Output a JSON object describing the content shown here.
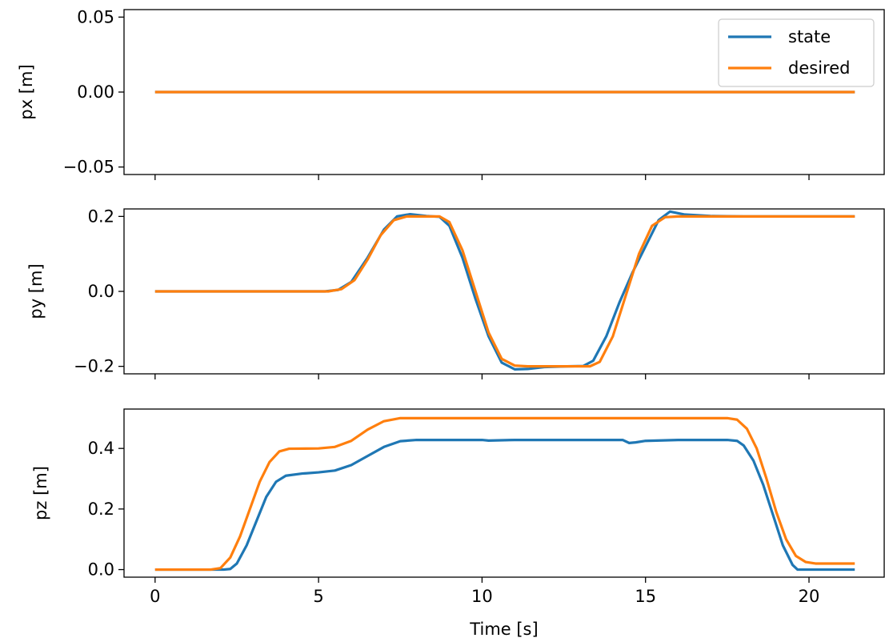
{
  "colors": {
    "state": "#1f77b4",
    "desired": "#ff7f0e"
  },
  "chart_data": [
    {
      "type": "line",
      "ylabel": "px [m]",
      "xlabel": "",
      "xlim": [
        -0.95,
        22.3
      ],
      "ylim": [
        -0.055,
        0.055
      ],
      "xticks": [
        0,
        5,
        10,
        15,
        20
      ],
      "xtick_labels_shown": false,
      "yticks": [
        -0.05,
        0.0,
        0.05
      ],
      "ytick_labels": [
        "−0.05",
        "0.00",
        "0.05"
      ],
      "grid": false,
      "legend": "top-right",
      "series": [
        {
          "name": "state",
          "color": "#1f77b4",
          "points": [
            [
              0,
              0
            ],
            [
              21.4,
              0
            ]
          ]
        },
        {
          "name": "desired",
          "color": "#ff7f0e",
          "points": [
            [
              0,
              0
            ],
            [
              21.4,
              0
            ]
          ]
        }
      ]
    },
    {
      "type": "line",
      "ylabel": "py [m]",
      "xlabel": "",
      "xlim": [
        -0.95,
        22.3
      ],
      "ylim": [
        -0.22,
        0.22
      ],
      "xticks": [
        0,
        5,
        10,
        15,
        20
      ],
      "xtick_labels_shown": false,
      "yticks": [
        -0.2,
        0.0,
        0.2
      ],
      "ytick_labels": [
        "−0.2",
        "0.0",
        "0.2"
      ],
      "grid": false,
      "series": [
        {
          "name": "state",
          "color": "#1f77b4",
          "points": [
            [
              0,
              0
            ],
            [
              5.2,
              0
            ],
            [
              5.6,
              0.004
            ],
            [
              6.0,
              0.025
            ],
            [
              6.5,
              0.09
            ],
            [
              7.0,
              0.165
            ],
            [
              7.4,
              0.2
            ],
            [
              7.8,
              0.206
            ],
            [
              8.3,
              0.201
            ],
            [
              8.7,
              0.199
            ],
            [
              9.0,
              0.175
            ],
            [
              9.4,
              0.09
            ],
            [
              9.8,
              -0.02
            ],
            [
              10.2,
              -0.12
            ],
            [
              10.6,
              -0.19
            ],
            [
              11.0,
              -0.208
            ],
            [
              11.4,
              -0.207
            ],
            [
              11.9,
              -0.202
            ],
            [
              12.6,
              -0.2
            ],
            [
              13.1,
              -0.199
            ],
            [
              13.4,
              -0.185
            ],
            [
              13.8,
              -0.12
            ],
            [
              14.2,
              -0.03
            ],
            [
              14.6,
              0.05
            ],
            [
              15.0,
              0.12
            ],
            [
              15.4,
              0.19
            ],
            [
              15.75,
              0.213
            ],
            [
              16.2,
              0.205
            ],
            [
              17.0,
              0.201
            ],
            [
              18.0,
              0.2
            ],
            [
              21.4,
              0.2
            ]
          ]
        },
        {
          "name": "desired",
          "color": "#ff7f0e",
          "points": [
            [
              0,
              0
            ],
            [
              5.3,
              0
            ],
            [
              5.7,
              0.006
            ],
            [
              6.1,
              0.03
            ],
            [
              6.5,
              0.085
            ],
            [
              6.9,
              0.15
            ],
            [
              7.3,
              0.19
            ],
            [
              7.7,
              0.2
            ],
            [
              8.7,
              0.2
            ],
            [
              9.0,
              0.185
            ],
            [
              9.4,
              0.11
            ],
            [
              9.8,
              0.0
            ],
            [
              10.2,
              -0.11
            ],
            [
              10.6,
              -0.18
            ],
            [
              11.0,
              -0.198
            ],
            [
              11.4,
              -0.2
            ],
            [
              13.3,
              -0.2
            ],
            [
              13.6,
              -0.188
            ],
            [
              14.0,
              -0.12
            ],
            [
              14.4,
              -0.01
            ],
            [
              14.8,
              0.1
            ],
            [
              15.2,
              0.175
            ],
            [
              15.6,
              0.198
            ],
            [
              16.0,
              0.2
            ],
            [
              21.4,
              0.2
            ]
          ]
        }
      ]
    },
    {
      "type": "line",
      "ylabel": "pz [m]",
      "xlabel": "Time [s]",
      "xlim": [
        -0.95,
        22.3
      ],
      "ylim": [
        -0.025,
        0.53
      ],
      "xticks": [
        0,
        5,
        10,
        15,
        20
      ],
      "xtick_labels": [
        "0",
        "5",
        "10",
        "15",
        "20"
      ],
      "yticks": [
        0.0,
        0.2,
        0.4
      ],
      "ytick_labels": [
        "0.0",
        "0.2",
        "0.4"
      ],
      "grid": false,
      "series": [
        {
          "name": "state",
          "color": "#1f77b4",
          "points": [
            [
              0,
              0
            ],
            [
              2.1,
              0
            ],
            [
              2.3,
              0.002
            ],
            [
              2.5,
              0.02
            ],
            [
              2.8,
              0.08
            ],
            [
              3.1,
              0.16
            ],
            [
              3.4,
              0.24
            ],
            [
              3.7,
              0.29
            ],
            [
              4.0,
              0.31
            ],
            [
              4.5,
              0.317
            ],
            [
              5.0,
              0.321
            ],
            [
              5.5,
              0.327
            ],
            [
              6.0,
              0.345
            ],
            [
              6.5,
              0.375
            ],
            [
              7.0,
              0.405
            ],
            [
              7.5,
              0.424
            ],
            [
              8.0,
              0.428
            ],
            [
              10.0,
              0.428
            ],
            [
              10.2,
              0.426
            ],
            [
              11.0,
              0.428
            ],
            [
              14.3,
              0.428
            ],
            [
              14.5,
              0.418
            ],
            [
              14.7,
              0.42
            ],
            [
              15.0,
              0.425
            ],
            [
              16.0,
              0.428
            ],
            [
              17.5,
              0.428
            ],
            [
              17.8,
              0.425
            ],
            [
              18.0,
              0.41
            ],
            [
              18.3,
              0.36
            ],
            [
              18.6,
              0.28
            ],
            [
              18.9,
              0.18
            ],
            [
              19.2,
              0.08
            ],
            [
              19.5,
              0.015
            ],
            [
              19.65,
              0
            ],
            [
              21.4,
              0
            ]
          ]
        },
        {
          "name": "desired",
          "color": "#ff7f0e",
          "points": [
            [
              0,
              0
            ],
            [
              1.7,
              0
            ],
            [
              2.0,
              0.005
            ],
            [
              2.3,
              0.04
            ],
            [
              2.6,
              0.11
            ],
            [
              2.9,
              0.2
            ],
            [
              3.2,
              0.29
            ],
            [
              3.5,
              0.355
            ],
            [
              3.8,
              0.39
            ],
            [
              4.1,
              0.399
            ],
            [
              5.0,
              0.4
            ],
            [
              5.5,
              0.405
            ],
            [
              6.0,
              0.425
            ],
            [
              6.5,
              0.462
            ],
            [
              7.0,
              0.49
            ],
            [
              7.5,
              0.5
            ],
            [
              17.5,
              0.5
            ],
            [
              17.8,
              0.495
            ],
            [
              18.1,
              0.465
            ],
            [
              18.4,
              0.4
            ],
            [
              18.7,
              0.3
            ],
            [
              19.0,
              0.19
            ],
            [
              19.3,
              0.1
            ],
            [
              19.6,
              0.045
            ],
            [
              19.9,
              0.025
            ],
            [
              20.2,
              0.02
            ],
            [
              21.4,
              0.02
            ]
          ]
        }
      ]
    }
  ],
  "legend": {
    "items": [
      {
        "label": "state"
      },
      {
        "label": "desired"
      }
    ]
  }
}
